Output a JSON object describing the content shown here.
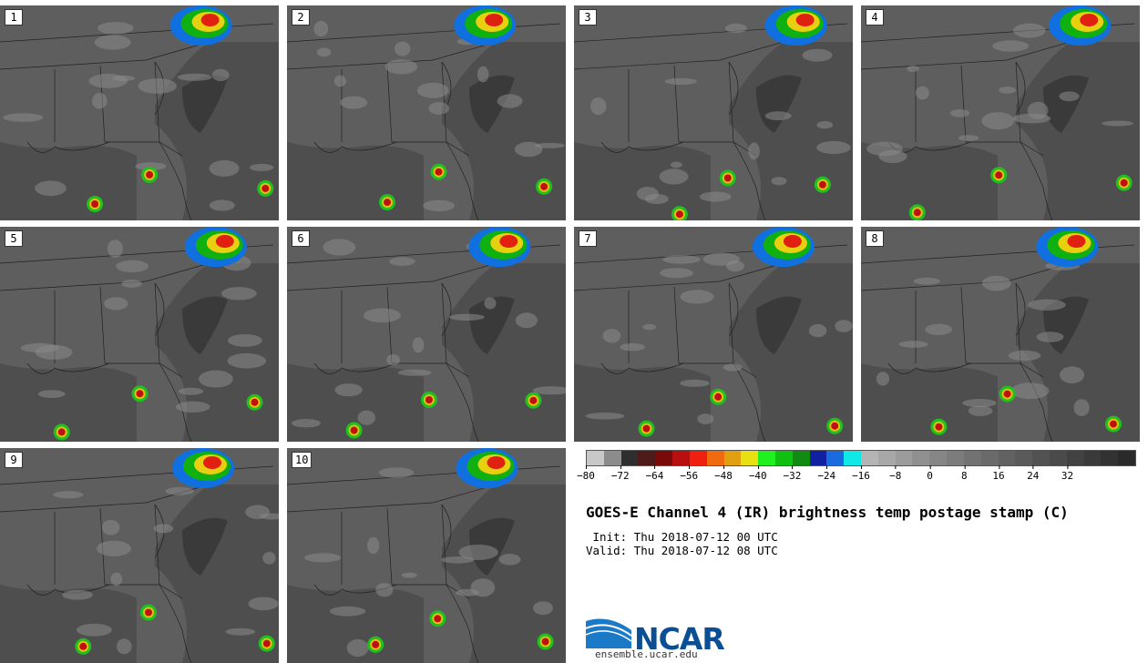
{
  "panels": [
    {
      "label": "1"
    },
    {
      "label": "2"
    },
    {
      "label": "3"
    },
    {
      "label": "4"
    },
    {
      "label": "5"
    },
    {
      "label": "6"
    },
    {
      "label": "7"
    },
    {
      "label": "8"
    },
    {
      "label": "9"
    },
    {
      "label": "10"
    }
  ],
  "colorbar": {
    "colors": [
      "#c8c8c8",
      "#8c8c8c",
      "#2e2e2e",
      "#4e1a1a",
      "#7a0a0a",
      "#b81010",
      "#f02010",
      "#f06a10",
      "#e0a010",
      "#e8e010",
      "#20f020",
      "#10c010",
      "#108a10",
      "#1020a0",
      "#1a6ae0",
      "#10e8e8",
      "#b4b4b4",
      "#a8a8a8",
      "#9c9c9c",
      "#909090",
      "#868686",
      "#7c7c7c",
      "#727272",
      "#6a6a6a",
      "#626262",
      "#5a5a5a",
      "#525252",
      "#4a4a4a",
      "#424242",
      "#3a3a3a",
      "#323232",
      "#2a2a2a"
    ],
    "ticks": [
      "−80",
      "−72",
      "−64",
      "−56",
      "−48",
      "−40",
      "−32",
      "−24",
      "−16",
      "−8",
      "0",
      "8",
      "16",
      "24",
      "32"
    ]
  },
  "title": "GOES-E Channel 4 (IR) brightness temp postage stamp (C)",
  "init": " Init: Thu 2018-07-12 00 UTC",
  "valid": "Valid: Thu 2018-07-12 08 UTC",
  "logo": {
    "text": "NCAR",
    "site": "ensemble.ucar.edu"
  }
}
